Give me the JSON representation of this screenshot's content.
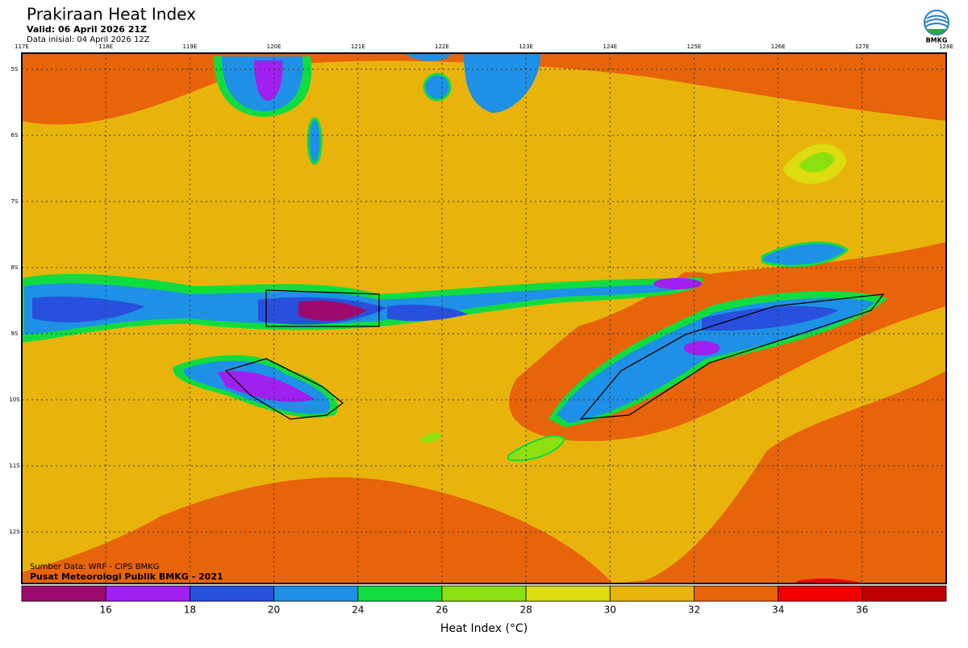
{
  "header": {
    "title": "Prakiraan Heat Index",
    "valid": "Valid: 06 April 2026 21Z",
    "init": "Data inisial: 04 April 2026 12Z",
    "logo": "BMKG"
  },
  "map": {
    "lon_labels": [
      "117E",
      "118E",
      "119E",
      "120E",
      "121E",
      "122E",
      "123E",
      "124E",
      "125E",
      "126E",
      "127E",
      "128E"
    ],
    "lat_labels": [
      "5S",
      "6S",
      "7S",
      "8S",
      "9S",
      "10S",
      "11S",
      "12S"
    ],
    "source": "Sumber Data: WRF - CIPS BMKG",
    "credit": "Pusat Meteorologi Publik BMKG - 2021"
  },
  "legend": {
    "colors": [
      "#9c0a6e",
      "#a020f0",
      "#2850dc",
      "#1e90e6",
      "#10dc40",
      "#8ce010",
      "#dcdc10",
      "#e8b40c",
      "#e8640a",
      "#f00000",
      "#c00000"
    ],
    "ticks": [
      16,
      18,
      20,
      24,
      26,
      28,
      30,
      32,
      34,
      36
    ],
    "label": "Heat Index (°C)"
  }
}
